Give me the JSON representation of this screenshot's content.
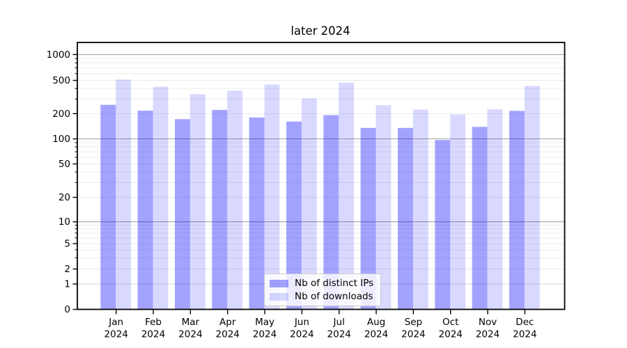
{
  "chart_data": {
    "type": "bar",
    "title": "later 2024",
    "year": "2024",
    "categories": [
      "Jan",
      "Feb",
      "Mar",
      "Apr",
      "May",
      "Jun",
      "Jul",
      "Aug",
      "Sep",
      "Oct",
      "Nov",
      "Dec"
    ],
    "series": [
      {
        "name": "Nb of distinct IPs",
        "color": "rgba(0,0,255,0.36)",
        "values": [
          255,
          217,
          172,
          222,
          180,
          161,
          192,
          135,
          135,
          97,
          139,
          216
        ]
      },
      {
        "name": "Nb of downloads",
        "color": "rgba(0,0,255,0.15)",
        "values": [
          510,
          419,
          342,
          377,
          447,
          305,
          470,
          252,
          224,
          196,
          226,
          430
        ]
      }
    ],
    "yscale": "symlog",
    "y_ticks": [
      0,
      1,
      2,
      5,
      10,
      20,
      50,
      100,
      200,
      500,
      1000
    ],
    "ylim_top": 1380,
    "grid": true,
    "legend_position": "lower center",
    "colors": {
      "grid_minor": "#e9e9e9",
      "grid_power10": "#a5a5a5",
      "grid_one": "#d6d6d6",
      "spine": "#000000",
      "legend_border": "#cccccc"
    }
  }
}
